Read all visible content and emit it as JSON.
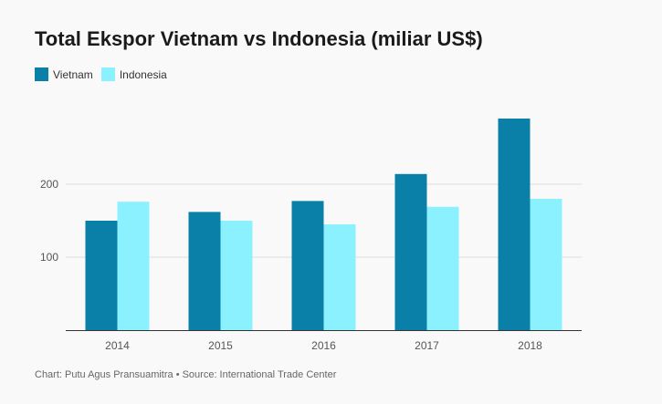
{
  "chart_data": {
    "type": "bar",
    "title": "Total Ekspor Vietnam vs Indonesia (miliar US$)",
    "categories": [
      "2014",
      "2015",
      "2016",
      "2017",
      "2018"
    ],
    "series": [
      {
        "name": "Vietnam",
        "color": "#0a7fa8",
        "values": [
          150,
          162,
          177,
          214,
          290
        ]
      },
      {
        "name": "Indonesia",
        "color": "#8bf1fe",
        "values": [
          176,
          150,
          145,
          169,
          180
        ]
      }
    ],
    "yticks": [
      100,
      200
    ],
    "ylim": [
      0,
      300
    ],
    "xlabel": "",
    "ylabel": "",
    "grid": true,
    "legend_position": "top-left"
  },
  "footer": {
    "credit": "Chart: Putu Agus Pransuamitra • Source: International Trade Center"
  }
}
